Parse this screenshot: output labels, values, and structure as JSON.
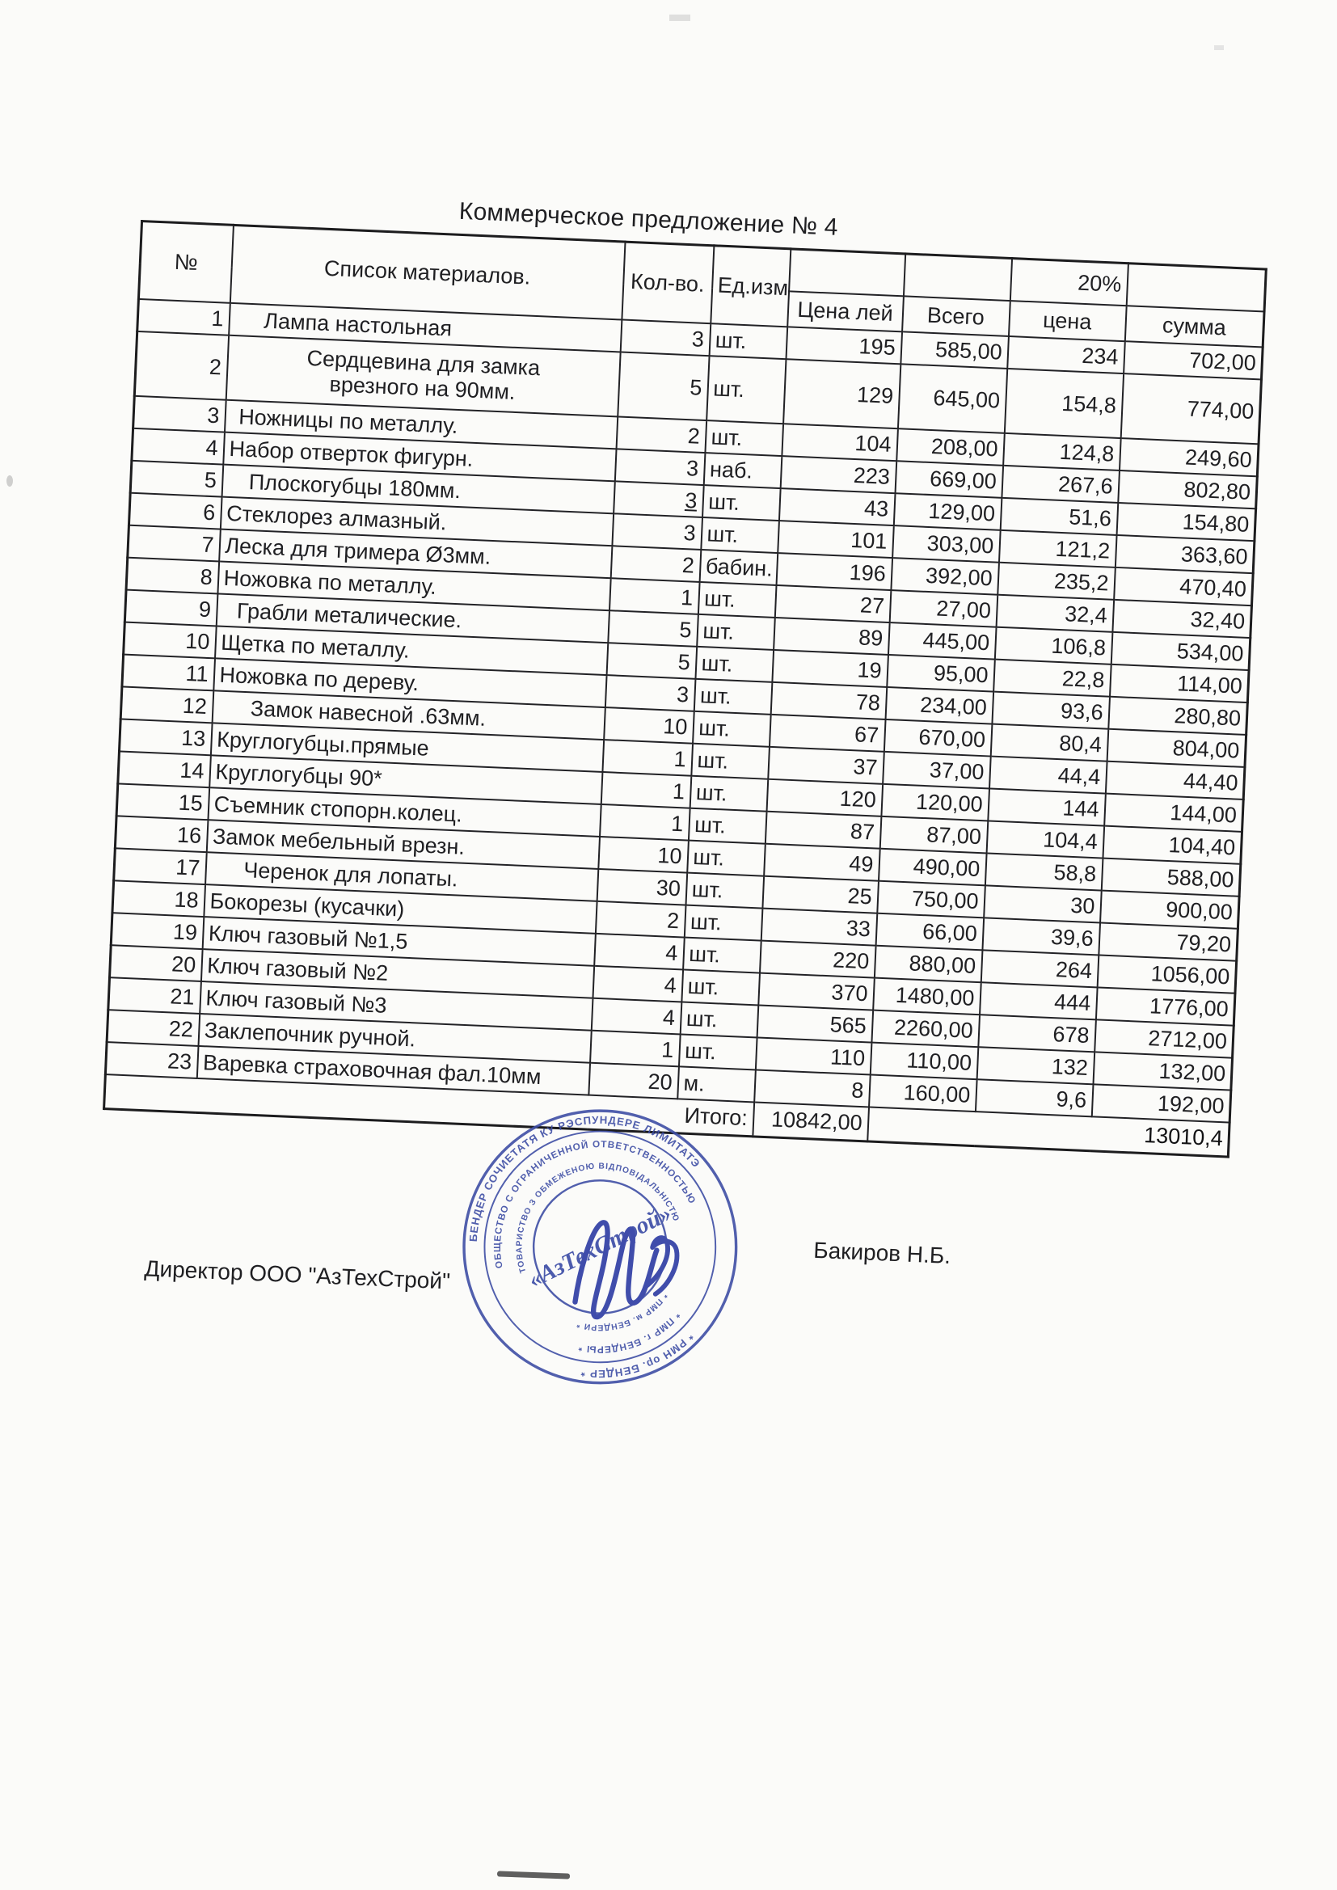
{
  "title": "Коммерческое предложение № 4",
  "table": {
    "col_headers": {
      "num": "№",
      "name": "Список материалов.",
      "qty": "Кол-во.",
      "unit": "Ед.изм",
      "price": "Цена лей",
      "total": "Всего",
      "vat_label": "20%",
      "vat_price": "цена",
      "vat_sum": "сумма"
    },
    "rows": [
      {
        "num": "1",
        "name": "Лампа настольная",
        "qty": "3",
        "unit": "шт.",
        "price": "195",
        "total": "585,00",
        "vat_price": "234",
        "vat_sum": "702,00",
        "ind": 42
      },
      {
        "num": "2",
        "name": "Сердцевина для замка\nврезного на 90мм.",
        "qty": "5",
        "unit": "шт.",
        "price": "129",
        "total": "645,00",
        "vat_price": "154,8",
        "vat_sum": "774,00",
        "center": true,
        "tall": true
      },
      {
        "num": "3",
        "name": "Ножницы по металлу.",
        "qty": "2",
        "unit": "шт.",
        "price": "104",
        "total": "208,00",
        "vat_price": "124,8",
        "vat_sum": "249,60",
        "ind": 16
      },
      {
        "num": "4",
        "name": "Набор отверток фигурн.",
        "qty": "3",
        "unit": "наб.",
        "price": "223",
        "total": "669,00",
        "vat_price": "267,6",
        "vat_sum": "802,80",
        "ind": 6
      },
      {
        "num": "5",
        "name": "Плоскогубцы 180мм.",
        "qty": "3",
        "unit": "шт.",
        "price": "43",
        "total": "129,00",
        "vat_price": "51,6",
        "vat_sum": "154,80",
        "ind": 32,
        "qty_underline": true
      },
      {
        "num": "6",
        "name": "Стеклорез алмазный.",
        "qty": "3",
        "unit": "шт.",
        "price": "101",
        "total": "303,00",
        "vat_price": "121,2",
        "vat_sum": "363,60",
        "ind": 6
      },
      {
        "num": "7",
        "name": "Леска для тримера Ø3мм.",
        "qty": "2",
        "unit": "бабин.",
        "price": "196",
        "total": "392,00",
        "vat_price": "235,2",
        "vat_sum": "470,40",
        "ind": 6
      },
      {
        "num": "8",
        "name": "Ножовка по металлу.",
        "qty": "1",
        "unit": "шт.",
        "price": "27",
        "total": "27,00",
        "vat_price": "32,4",
        "vat_sum": "32,40",
        "ind": 6
      },
      {
        "num": "9",
        "name": "Грабли металические.",
        "qty": "5",
        "unit": "шт.",
        "price": "89",
        "total": "445,00",
        "vat_price": "106,8",
        "vat_sum": "534,00",
        "ind": 24
      },
      {
        "num": "10",
        "name": "Щетка по металлу.",
        "qty": "5",
        "unit": "шт.",
        "price": "19",
        "total": "95,00",
        "vat_price": "22,8",
        "vat_sum": "114,00",
        "ind": 6
      },
      {
        "num": "11",
        "name": "Ножовка по дереву.",
        "qty": "3",
        "unit": "шт.",
        "price": "78",
        "total": "234,00",
        "vat_price": "93,6",
        "vat_sum": "280,80",
        "ind": 6
      },
      {
        "num": "12",
        "name": "Замок навесной  .63мм.",
        "qty": "10",
        "unit": "шт.",
        "price": "67",
        "total": "670,00",
        "vat_price": "80,4",
        "vat_sum": "804,00",
        "ind": 46
      },
      {
        "num": "13",
        "name": "Круглогубцы.прямые",
        "qty": "1",
        "unit": "шт.",
        "price": "37",
        "total": "37,00",
        "vat_price": "44,4",
        "vat_sum": "44,40",
        "ind": 6
      },
      {
        "num": "14",
        "name": "Круглогубцы 90*",
        "qty": "1",
        "unit": "шт.",
        "price": "120",
        "total": "120,00",
        "vat_price": "144",
        "vat_sum": "144,00",
        "ind": 6
      },
      {
        "num": "15",
        "name": "Съемник стопорн.колец.",
        "qty": "1",
        "unit": "шт.",
        "price": "87",
        "total": "87,00",
        "vat_price": "104,4",
        "vat_sum": "104,40",
        "ind": 6
      },
      {
        "num": "16",
        "name": "Замок мебельный врезн.",
        "qty": "10",
        "unit": "шт.",
        "price": "49",
        "total": "490,00",
        "vat_price": "58,8",
        "vat_sum": "588,00",
        "ind": 6
      },
      {
        "num": "17",
        "name": "Черенок для лопаты.",
        "qty": "30",
        "unit": "шт.",
        "price": "25",
        "total": "750,00",
        "vat_price": "30",
        "vat_sum": "900,00",
        "ind": 46
      },
      {
        "num": "18",
        "name": "Бокорезы (кусачки)",
        "qty": "2",
        "unit": "шт.",
        "price": "33",
        "total": "66,00",
        "vat_price": "39,6",
        "vat_sum": "79,20",
        "ind": 6
      },
      {
        "num": "19",
        "name": "Ключ газовый №1,5",
        "qty": "4",
        "unit": "шт.",
        "price": "220",
        "total": "880,00",
        "vat_price": "264",
        "vat_sum": "1056,00",
        "ind": 6
      },
      {
        "num": "20",
        "name": "Ключ газовый №2",
        "qty": "4",
        "unit": "шт.",
        "price": "370",
        "total": "1480,00",
        "vat_price": "444",
        "vat_sum": "1776,00",
        "ind": 6
      },
      {
        "num": "21",
        "name": "Ключ газовый №3",
        "qty": "4",
        "unit": "шт.",
        "price": "565",
        "total": "2260,00",
        "vat_price": "678",
        "vat_sum": "2712,00",
        "ind": 6
      },
      {
        "num": "22",
        "name": "Заклепочник ручной.",
        "qty": "1",
        "unit": "шт.",
        "price": "110",
        "total": "110,00",
        "vat_price": "132",
        "vat_sum": "132,00",
        "ind": 6
      },
      {
        "num": "23",
        "name": "Варевка страховочная фал.10мм",
        "qty": "20",
        "unit": "м.",
        "price": "8",
        "total": "160,00",
        "vat_price": "9,6",
        "vat_sum": "192,00",
        "ind": 6
      }
    ],
    "totals": {
      "label": "Итого:",
      "total_value": "10842,00",
      "grand_value": "13010,4"
    }
  },
  "signature_block": {
    "director_label": "Директор ООО \"АзТехСтрой\"",
    "signer_name": "Бакиров Н.Б."
  },
  "stamp": {
    "center_text": "«АзТехСтрой»",
    "ring_outer_top": "БЕНДЕР СОЧИЕТАТЯ КУ РЭСПУНДЕРЕ ЛИМИТАТЭ",
    "ring_outer_bottom": "* РМН ор. БЕНДЕР *",
    "ring_middle_top": "ОБЩЕСТВО С ОГРАНИЧЕННОЙ ОТВЕТСТВЕННОСТЬЮ",
    "ring_middle_bottom": "* ПМР г. БЕНДЕРЫ *",
    "ring_inner_top": "ТОВАРИСТВО З ОБМЕЖЕНОЮ ВІДПОВІДАЛЬНІСТЮ",
    "ring_inner_bottom": "* ПМР м. БЕНДЕРИ *"
  },
  "colors": {
    "ink": "#1f1f22",
    "paper": "#fbfbf9",
    "stamp_blue": "#3f4fa5",
    "signature_blue": "#2c3ba3"
  }
}
